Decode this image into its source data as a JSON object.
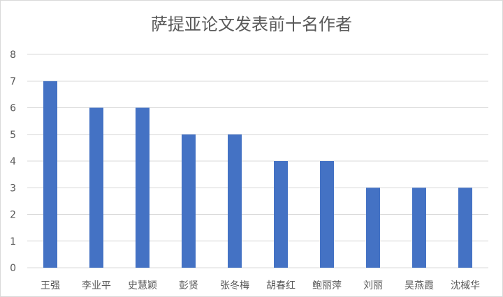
{
  "chart_data": {
    "type": "bar",
    "title": "萨提亚论文发表前十名作者",
    "categories": [
      "王强",
      "李业平",
      "史慧颖",
      "彭贤",
      "张冬梅",
      "胡春红",
      "鲍丽萍",
      "刘丽",
      "吴燕霞",
      "沈棫华"
    ],
    "values": [
      7,
      6,
      6,
      5,
      5,
      4,
      4,
      3,
      3,
      3
    ],
    "xlabel": "",
    "ylabel": "",
    "ylim": [
      0,
      8
    ],
    "yticks": [
      0,
      1,
      2,
      3,
      4,
      5,
      6,
      7,
      8
    ],
    "grid": true,
    "legend": "none",
    "colors": {
      "bar": "#4472C4",
      "grid": "#d9d9d9",
      "text": "#595959"
    }
  }
}
